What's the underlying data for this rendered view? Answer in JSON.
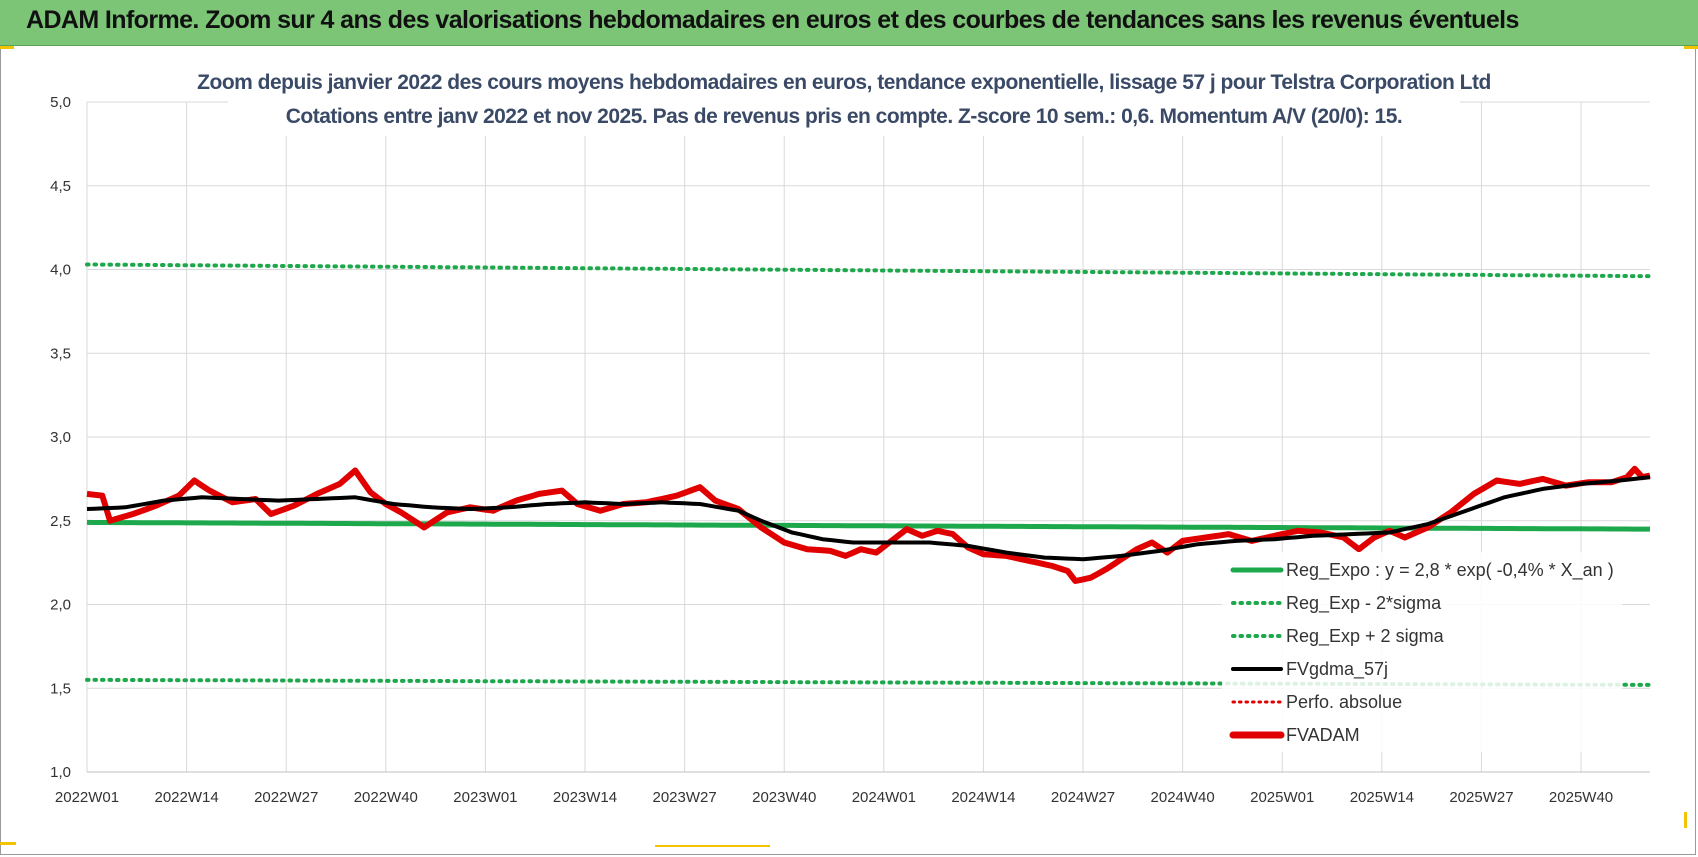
{
  "header": {
    "title": "ADAM Informe. Zoom sur 4 ans des valorisations hebdomadaires en euros et des courbes de tendances sans les revenus éventuels"
  },
  "colors": {
    "header_bg": "#7cc576",
    "reg_expo": "#1ea84c",
    "sigma_bands": "#1ea84c",
    "fvgdma": "#000000",
    "perfo": "#e00000",
    "fvadam": "#e00000",
    "grid": "#d9d9d9"
  },
  "chart_data": {
    "type": "line",
    "title_line1": "Zoom depuis janvier 2022 des cours moyens hebdomadaires en euros, tendance exponentielle, lissage 57 j pour Telstra Corporation Ltd",
    "title_line2": "Cotations entre janv 2022 et nov 2025. Pas de revenus pris en compte. Z-score 10 sem.: 0,6. Momentum A/V (20/0): 15.",
    "ylim": [
      1.0,
      5.0
    ],
    "yticks": [
      "1,0",
      "1,5",
      "2,0",
      "2,5",
      "3,0",
      "3,5",
      "4,0",
      "4,5",
      "5,0"
    ],
    "xticks": [
      "2022W01",
      "2022W14",
      "2022W27",
      "2022W40",
      "2023W01",
      "2023W14",
      "2023W27",
      "2023W40",
      "2024W01",
      "2024W14",
      "2024W27",
      "2024W40",
      "2025W01",
      "2025W14",
      "2025W27",
      "2025W40"
    ],
    "n_weeks": 205,
    "legend": [
      {
        "name": "Reg_Expo : y = 2,8 * exp( -0,4% *  X_an )",
        "style": "solid-green"
      },
      {
        "name": "Reg_Exp - 2*sigma",
        "style": "dotted-green"
      },
      {
        "name": "Reg_Exp + 2 sigma",
        "style": "dotted-green"
      },
      {
        "name": "FVgdma_57j",
        "style": "solid-black"
      },
      {
        "name": "Perfo. absolue",
        "style": "dotted-red"
      },
      {
        "name": "FVADAM",
        "style": "thick-red"
      }
    ],
    "reg_expo": {
      "start": 2.49,
      "end": 2.45
    },
    "upper_sigma": {
      "start": 4.03,
      "end": 3.96
    },
    "lower_sigma": {
      "start": 1.55,
      "end": 1.52
    },
    "fvadam_knots": [
      [
        0,
        2.66
      ],
      [
        2,
        2.65
      ],
      [
        3,
        2.5
      ],
      [
        6,
        2.54
      ],
      [
        9,
        2.59
      ],
      [
        12,
        2.65
      ],
      [
        14,
        2.74
      ],
      [
        16,
        2.68
      ],
      [
        19,
        2.61
      ],
      [
        22,
        2.63
      ],
      [
        24,
        2.54
      ],
      [
        27,
        2.59
      ],
      [
        30,
        2.66
      ],
      [
        33,
        2.72
      ],
      [
        35,
        2.8
      ],
      [
        37,
        2.67
      ],
      [
        39,
        2.6
      ],
      [
        41,
        2.55
      ],
      [
        44,
        2.46
      ],
      [
        47,
        2.55
      ],
      [
        50,
        2.58
      ],
      [
        53,
        2.56
      ],
      [
        56,
        2.62
      ],
      [
        59,
        2.66
      ],
      [
        62,
        2.68
      ],
      [
        64,
        2.6
      ],
      [
        67,
        2.56
      ],
      [
        70,
        2.6
      ],
      [
        73,
        2.61
      ],
      [
        77,
        2.65
      ],
      [
        80,
        2.7
      ],
      [
        82,
        2.62
      ],
      [
        85,
        2.57
      ],
      [
        88,
        2.46
      ],
      [
        91,
        2.37
      ],
      [
        94,
        2.33
      ],
      [
        97,
        2.32
      ],
      [
        99,
        2.29
      ],
      [
        101,
        2.33
      ],
      [
        103,
        2.31
      ],
      [
        105,
        2.38
      ],
      [
        107,
        2.45
      ],
      [
        109,
        2.41
      ],
      [
        111,
        2.44
      ],
      [
        113,
        2.42
      ],
      [
        115,
        2.34
      ],
      [
        117,
        2.3
      ],
      [
        120,
        2.29
      ],
      [
        122,
        2.27
      ],
      [
        124,
        2.25
      ],
      [
        126,
        2.23
      ],
      [
        128,
        2.2
      ],
      [
        129,
        2.14
      ],
      [
        131,
        2.16
      ],
      [
        133,
        2.21
      ],
      [
        135,
        2.27
      ],
      [
        137,
        2.33
      ],
      [
        139,
        2.37
      ],
      [
        141,
        2.31
      ],
      [
        143,
        2.38
      ],
      [
        146,
        2.4
      ],
      [
        149,
        2.42
      ],
      [
        152,
        2.38
      ],
      [
        155,
        2.41
      ],
      [
        158,
        2.44
      ],
      [
        161,
        2.43
      ],
      [
        164,
        2.4
      ],
      [
        166,
        2.33
      ],
      [
        168,
        2.4
      ],
      [
        170,
        2.44
      ],
      [
        172,
        2.4
      ],
      [
        175,
        2.46
      ],
      [
        178,
        2.55
      ],
      [
        181,
        2.66
      ],
      [
        184,
        2.74
      ],
      [
        187,
        2.72
      ],
      [
        190,
        2.75
      ],
      [
        193,
        2.71
      ],
      [
        196,
        2.73
      ],
      [
        199,
        2.73
      ],
      [
        201,
        2.76
      ],
      [
        202,
        2.81
      ],
      [
        203,
        2.76
      ],
      [
        204,
        2.77
      ]
    ],
    "fvgdma_knots": [
      [
        0,
        2.57
      ],
      [
        5,
        2.58
      ],
      [
        10,
        2.62
      ],
      [
        15,
        2.64
      ],
      [
        20,
        2.63
      ],
      [
        25,
        2.62
      ],
      [
        30,
        2.63
      ],
      [
        35,
        2.64
      ],
      [
        40,
        2.6
      ],
      [
        45,
        2.58
      ],
      [
        50,
        2.57
      ],
      [
        55,
        2.58
      ],
      [
        60,
        2.6
      ],
      [
        65,
        2.61
      ],
      [
        70,
        2.6
      ],
      [
        75,
        2.61
      ],
      [
        80,
        2.6
      ],
      [
        85,
        2.56
      ],
      [
        88,
        2.5
      ],
      [
        92,
        2.43
      ],
      [
        96,
        2.39
      ],
      [
        100,
        2.37
      ],
      [
        105,
        2.37
      ],
      [
        110,
        2.37
      ],
      [
        115,
        2.35
      ],
      [
        120,
        2.31
      ],
      [
        125,
        2.28
      ],
      [
        130,
        2.27
      ],
      [
        135,
        2.29
      ],
      [
        140,
        2.32
      ],
      [
        145,
        2.36
      ],
      [
        150,
        2.38
      ],
      [
        155,
        2.39
      ],
      [
        160,
        2.41
      ],
      [
        165,
        2.42
      ],
      [
        170,
        2.43
      ],
      [
        175,
        2.48
      ],
      [
        180,
        2.56
      ],
      [
        185,
        2.64
      ],
      [
        190,
        2.69
      ],
      [
        195,
        2.72
      ],
      [
        200,
        2.74
      ],
      [
        204,
        2.76
      ]
    ]
  }
}
